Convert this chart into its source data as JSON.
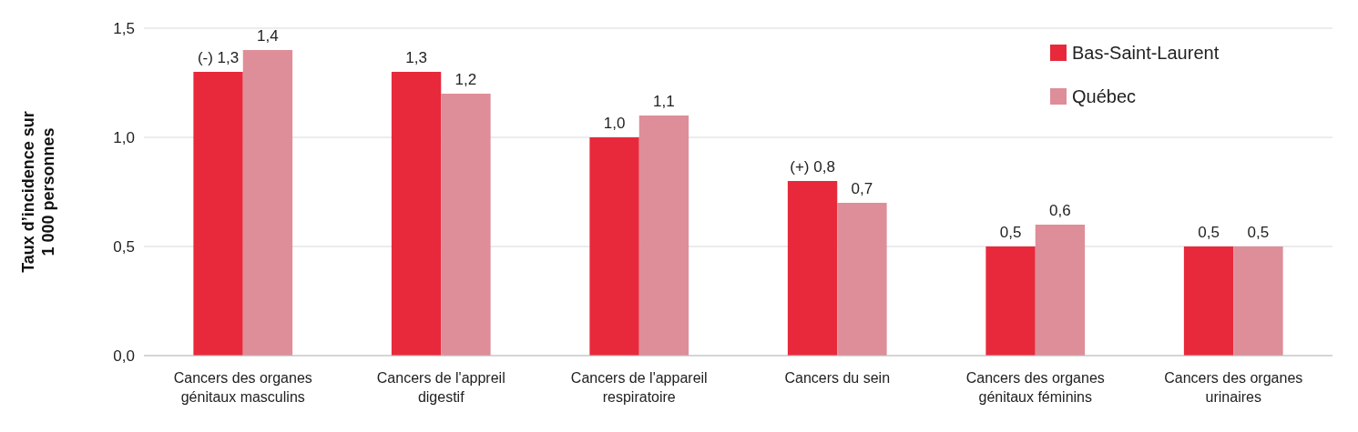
{
  "chart_data": {
    "type": "bar",
    "ylabel": "Taux d’incidence sur 1 000 personnes",
    "categories": [
      "Cancers des organes génitaux masculins",
      "Cancers de l'appreil digestif",
      "Cancers de l'appareil respiratoire",
      "Cancers du sein",
      "Cancers des organes génitaux féminins",
      "Cancers des organes urinaires"
    ],
    "series": [
      {
        "name": "Bas-Saint-Laurent",
        "color": "#e8293c",
        "values": [
          1.3,
          1.3,
          1.0,
          0.8,
          0.5,
          0.5
        ],
        "value_labels": [
          "(-) 1,3",
          "1,3",
          "1,0",
          "(+) 0,8",
          "0,5",
          "0,5"
        ]
      },
      {
        "name": "Québec",
        "color": "#de8e99",
        "values": [
          1.4,
          1.2,
          1.1,
          0.7,
          0.6,
          0.5
        ],
        "value_labels": [
          "1,4",
          "1,2",
          "1,1",
          "0,7",
          "0,6",
          "0,5"
        ]
      }
    ],
    "ylim": [
      0,
      1.5
    ],
    "yticks": [
      {
        "value": 0,
        "label": "0,0"
      },
      {
        "value": 0.5,
        "label": "0,5"
      },
      {
        "value": 1,
        "label": "1,0"
      },
      {
        "value": 1.5,
        "label": "1,5"
      }
    ],
    "grid": "y",
    "legend": "top right"
  }
}
